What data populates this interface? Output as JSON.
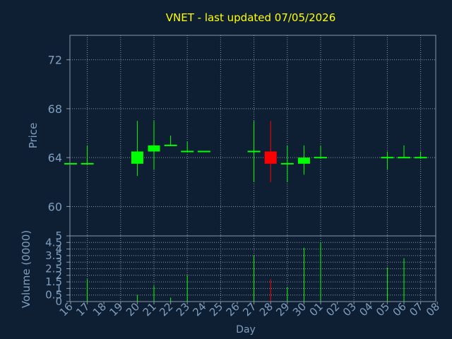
{
  "chart_data": [
    {
      "type": "candlestick",
      "title": "VNET - last updated 07/05/2026",
      "ylabel": "Price",
      "ylim": [
        57.6,
        74
      ],
      "yticks": [
        60,
        64,
        68,
        72
      ],
      "grid": true,
      "colors": {
        "up": "#00ff00",
        "down": "#ff0000",
        "text": "#7f9fbf",
        "title": "#ffff00",
        "bg": "#0f1f33",
        "grid": "#8a97a6"
      },
      "x_labels": [
        "16",
        "17",
        "18",
        "19",
        "20",
        "21",
        "22",
        "23",
        "24",
        "25",
        "26",
        "27",
        "28",
        "29",
        "30",
        "01",
        "02",
        "03",
        "04",
        "05",
        "06",
        "07",
        "08"
      ],
      "candles": [
        {
          "x": 0,
          "open": 63.5,
          "high": 63.5,
          "low": 63.5,
          "close": 63.5
        },
        {
          "x": 1,
          "open": 63.5,
          "high": 65.0,
          "low": 63.5,
          "close": 63.5
        },
        {
          "x": 4,
          "open": 63.5,
          "high": 67.0,
          "low": 62.5,
          "close": 64.5
        },
        {
          "x": 5,
          "open": 64.5,
          "high": 67.0,
          "low": 63.0,
          "close": 65.0
        },
        {
          "x": 6,
          "open": 65.0,
          "high": 65.8,
          "low": 65.0,
          "close": 65.0
        },
        {
          "x": 7,
          "open": 64.5,
          "high": 65.3,
          "low": 64.5,
          "close": 64.5
        },
        {
          "x": 8,
          "open": 64.5,
          "high": 64.5,
          "low": 64.5,
          "close": 64.5
        },
        {
          "x": 11,
          "open": 64.5,
          "high": 67.0,
          "low": 62.0,
          "close": 64.5
        },
        {
          "x": 12,
          "open": 64.5,
          "high": 67.0,
          "low": 62.0,
          "close": 63.5
        },
        {
          "x": 13,
          "open": 63.5,
          "high": 65.0,
          "low": 62.0,
          "close": 63.5
        },
        {
          "x": 14,
          "open": 63.5,
          "high": 65.0,
          "low": 62.6,
          "close": 64.0
        },
        {
          "x": 15,
          "open": 64.0,
          "high": 65.0,
          "low": 64.0,
          "close": 64.0
        },
        {
          "x": 19,
          "open": 64.0,
          "high": 64.5,
          "low": 63.0,
          "close": 64.0
        },
        {
          "x": 20,
          "open": 64.0,
          "high": 65.0,
          "low": 64.0,
          "close": 64.0
        },
        {
          "x": 21,
          "open": 64.0,
          "high": 64.5,
          "low": 64.0,
          "close": 64.0
        }
      ]
    },
    {
      "type": "bar",
      "ylabel": "Volume (0000)",
      "xlabel": "Day",
      "ylim": [
        0,
        5
      ],
      "yticks": [
        0,
        0.5,
        1,
        1.5,
        2,
        2.5,
        3,
        3.5,
        4,
        4.5,
        5
      ],
      "ytick_labels": [
        "0",
        "0.5",
        "1",
        "1.5",
        "2",
        "2.5",
        "3",
        "3.5",
        "4",
        "4.5",
        "5"
      ],
      "volumes": [
        {
          "x": 1,
          "value": 1.7,
          "up": true
        },
        {
          "x": 4,
          "value": 0.5,
          "up": true
        },
        {
          "x": 5,
          "value": 1.2,
          "up": true
        },
        {
          "x": 6,
          "value": 0.3,
          "up": true
        },
        {
          "x": 7,
          "value": 2.0,
          "up": true
        },
        {
          "x": 11,
          "value": 3.5,
          "up": true
        },
        {
          "x": 12,
          "value": 1.7,
          "up": false
        },
        {
          "x": 13,
          "value": 1.1,
          "up": true
        },
        {
          "x": 14,
          "value": 4.1,
          "up": true
        },
        {
          "x": 15,
          "value": 4.5,
          "up": true
        },
        {
          "x": 19,
          "value": 2.6,
          "up": true
        },
        {
          "x": 20,
          "value": 3.3,
          "up": true
        }
      ]
    }
  ]
}
